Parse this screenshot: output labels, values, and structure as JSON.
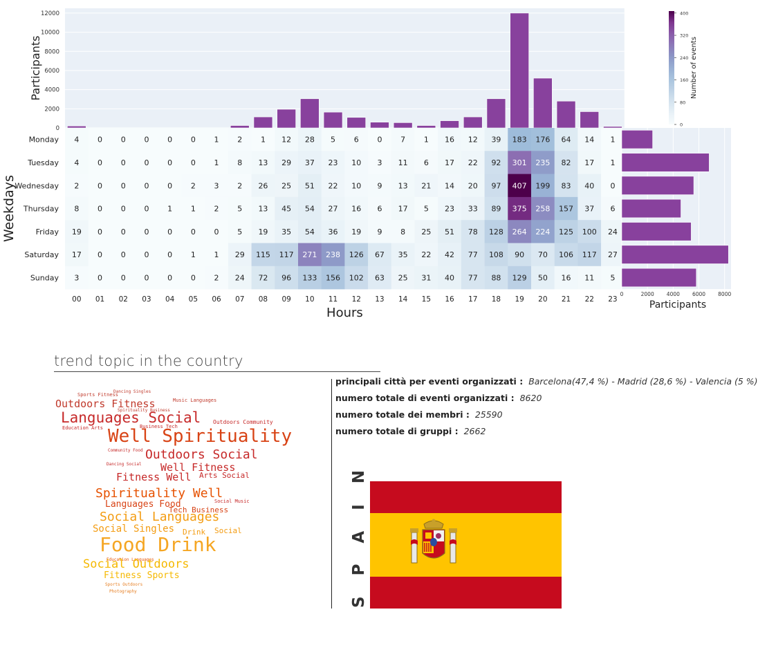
{
  "chart_data": [
    {
      "type": "bar",
      "ylabel": "Participants",
      "ylim": [
        0,
        12500
      ],
      "yticks": [
        0,
        2000,
        4000,
        6000,
        8000,
        10000,
        12000
      ],
      "categories": [
        "00",
        "01",
        "02",
        "03",
        "04",
        "05",
        "06",
        "07",
        "08",
        "09",
        "10",
        "11",
        "12",
        "13",
        "14",
        "15",
        "16",
        "17",
        "18",
        "19",
        "20",
        "21",
        "22",
        "23"
      ],
      "values": [
        200,
        0,
        0,
        0,
        0,
        0,
        0,
        250,
        1150,
        1950,
        3050,
        1650,
        1100,
        600,
        550,
        250,
        750,
        1150,
        3050,
        12000,
        5200,
        2800,
        1700,
        150
      ],
      "bar_color": "#88419d",
      "grid": true
    },
    {
      "type": "heatmap",
      "xlabel": "Hours",
      "ylabel": "Weekdays",
      "x_categories": [
        "00",
        "01",
        "02",
        "03",
        "04",
        "05",
        "06",
        "07",
        "08",
        "09",
        "10",
        "11",
        "12",
        "13",
        "14",
        "15",
        "16",
        "17",
        "18",
        "19",
        "20",
        "21",
        "22",
        "23"
      ],
      "y_categories": [
        "Monday",
        "Tuesday",
        "Wednesday",
        "Thursday",
        "Friday",
        "Saturday",
        "Sunday"
      ],
      "values": [
        [
          4,
          0,
          0,
          0,
          0,
          0,
          1,
          2,
          1,
          12,
          28,
          5,
          6,
          0,
          7,
          1,
          16,
          12,
          39,
          183,
          176,
          64,
          14,
          1
        ],
        [
          4,
          0,
          0,
          0,
          0,
          0,
          1,
          8,
          13,
          29,
          37,
          23,
          10,
          3,
          11,
          6,
          17,
          22,
          92,
          301,
          235,
          82,
          17,
          1
        ],
        [
          2,
          0,
          0,
          0,
          0,
          2,
          3,
          2,
          26,
          25,
          51,
          22,
          10,
          9,
          13,
          21,
          14,
          20,
          97,
          407,
          199,
          83,
          40,
          0
        ],
        [
          8,
          0,
          0,
          0,
          1,
          1,
          2,
          5,
          13,
          45,
          54,
          27,
          16,
          6,
          17,
          5,
          23,
          33,
          89,
          375,
          258,
          157,
          37,
          6
        ],
        [
          19,
          0,
          0,
          0,
          0,
          0,
          0,
          5,
          19,
          35,
          54,
          36,
          19,
          9,
          8,
          25,
          51,
          78,
          128,
          264,
          224,
          125,
          100,
          24
        ],
        [
          17,
          0,
          0,
          0,
          0,
          1,
          1,
          29,
          115,
          117,
          271,
          238,
          126,
          67,
          35,
          22,
          42,
          77,
          108,
          90,
          70,
          106,
          117,
          27
        ],
        [
          3,
          0,
          0,
          0,
          0,
          0,
          2,
          24,
          72,
          96,
          133,
          156,
          102,
          63,
          25,
          31,
          40,
          77,
          88,
          129,
          50,
          16,
          11,
          5
        ]
      ],
      "colorbar": {
        "label": "Number of events",
        "min": 0,
        "max": 407,
        "ticks": [
          0,
          80,
          160,
          240,
          320,
          400
        ],
        "colormap": "BuPu"
      }
    },
    {
      "type": "bar",
      "orientation": "horizontal",
      "xlabel": "Participants",
      "xlim": [
        0,
        8500
      ],
      "xticks": [
        0,
        2000,
        4000,
        6000,
        8000
      ],
      "categories": [
        "Monday",
        "Tuesday",
        "Wednesday",
        "Thursday",
        "Friday",
        "Saturday",
        "Sunday"
      ],
      "values": [
        2400,
        6800,
        5600,
        4600,
        5400,
        8300,
        5800
      ],
      "bar_color": "#88419d",
      "grid": true
    }
  ],
  "trend": {
    "title": "trend topic in the country",
    "words": [
      {
        "text": "Sports Fitness",
        "size": 7,
        "color": "#c0392b"
      },
      {
        "text": "Dancing Singles",
        "size": 6,
        "color": "#c0392b"
      },
      {
        "text": "Outdoors Fitness",
        "size": 15,
        "color": "#c0392b"
      },
      {
        "text": "Music Languages",
        "size": 7,
        "color": "#c0392b"
      },
      {
        "text": "Spirituality Business",
        "size": 6,
        "color": "#c0392b"
      },
      {
        "text": "Languages Social",
        "size": 21,
        "color": "#c62828"
      },
      {
        "text": "Outdoors Community",
        "size": 8,
        "color": "#c62828"
      },
      {
        "text": "Education Arts",
        "size": 7,
        "color": "#c62828"
      },
      {
        "text": "Business Tech",
        "size": 7,
        "color": "#c62828"
      },
      {
        "text": "Well Spirituality",
        "size": 26,
        "color": "#d84315"
      },
      {
        "text": "Community Food",
        "size": 6,
        "color": "#c62828"
      },
      {
        "text": "Outdoors Social",
        "size": 18,
        "color": "#c62828"
      },
      {
        "text": "Well Fitness",
        "size": 15,
        "color": "#c62828"
      },
      {
        "text": "Dancing Social",
        "size": 6,
        "color": "#c62828"
      },
      {
        "text": "Arts Social",
        "size": 11,
        "color": "#c62828"
      },
      {
        "text": "Fitness Well",
        "size": 15,
        "color": "#c62828"
      },
      {
        "text": "Spirituality Well",
        "size": 18,
        "color": "#e65100"
      },
      {
        "text": "Social Music",
        "size": 7,
        "color": "#c62828"
      },
      {
        "text": "Languages Food",
        "size": 13,
        "color": "#d84315"
      },
      {
        "text": "Tech Business",
        "size": 11,
        "color": "#d84315"
      },
      {
        "text": "Social Languages",
        "size": 18,
        "color": "#f39c12"
      },
      {
        "text": "Social Singles",
        "size": 14,
        "color": "#f39c12"
      },
      {
        "text": "Drink",
        "size": 11,
        "color": "#f39c12"
      },
      {
        "text": "Social",
        "size": 11,
        "color": "#f39c12"
      },
      {
        "text": "Food Drink",
        "size": 28,
        "color": "#f5a623"
      },
      {
        "text": "Education Languages",
        "size": 6,
        "color": "#e65100"
      },
      {
        "text": "Social Outdoors",
        "size": 17,
        "color": "#f5b800"
      },
      {
        "text": "Fitness Sports",
        "size": 13,
        "color": "#f5b800"
      },
      {
        "text": "Sports Outdoors",
        "size": 6,
        "color": "#e67e22"
      },
      {
        "text": "Photography",
        "size": 6,
        "color": "#e67e22"
      }
    ]
  },
  "stats": [
    {
      "label": "principali città per eventi organizzati :",
      "value": "Barcelona(47,4 %) - Madrid (28,6 %) - Valencia (5 %)"
    },
    {
      "label": "numero totale di eventi organizzati :",
      "value": "8620"
    },
    {
      "label": "numero totale dei membri :",
      "value": "25590"
    },
    {
      "label": "numero totale di gruppi :",
      "value": "2662"
    }
  ],
  "country": {
    "name": "S P A I N",
    "flag_colors": {
      "red": "#c60b1e",
      "yellow": "#ffc400"
    }
  }
}
